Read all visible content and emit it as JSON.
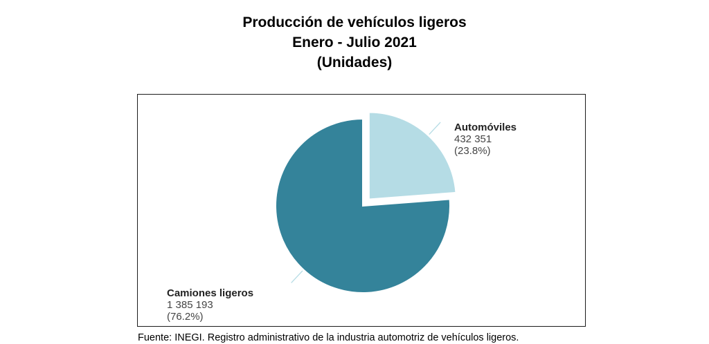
{
  "chart_data": {
    "type": "pie",
    "title": [
      "Producción de vehículos ligeros",
      "Enero - Julio 2021",
      "(Unidades)"
    ],
    "slices": [
      {
        "name": "Automóviles",
        "value_label": "432 351",
        "value": 432351,
        "percent_label": "(23.8%)",
        "percent": 23.8,
        "color": "#b5dce5",
        "exploded": true
      },
      {
        "name": "Camiones ligeros",
        "value_label": "1 385 193",
        "value": 1385193,
        "percent_label": "(76.2%)",
        "percent": 76.2,
        "color": "#34839a",
        "exploded": false
      }
    ],
    "leader_color": "#b5dce5"
  },
  "source": "Fuente: INEGI. Registro administrativo de la industria automotriz de vehículos ligeros."
}
